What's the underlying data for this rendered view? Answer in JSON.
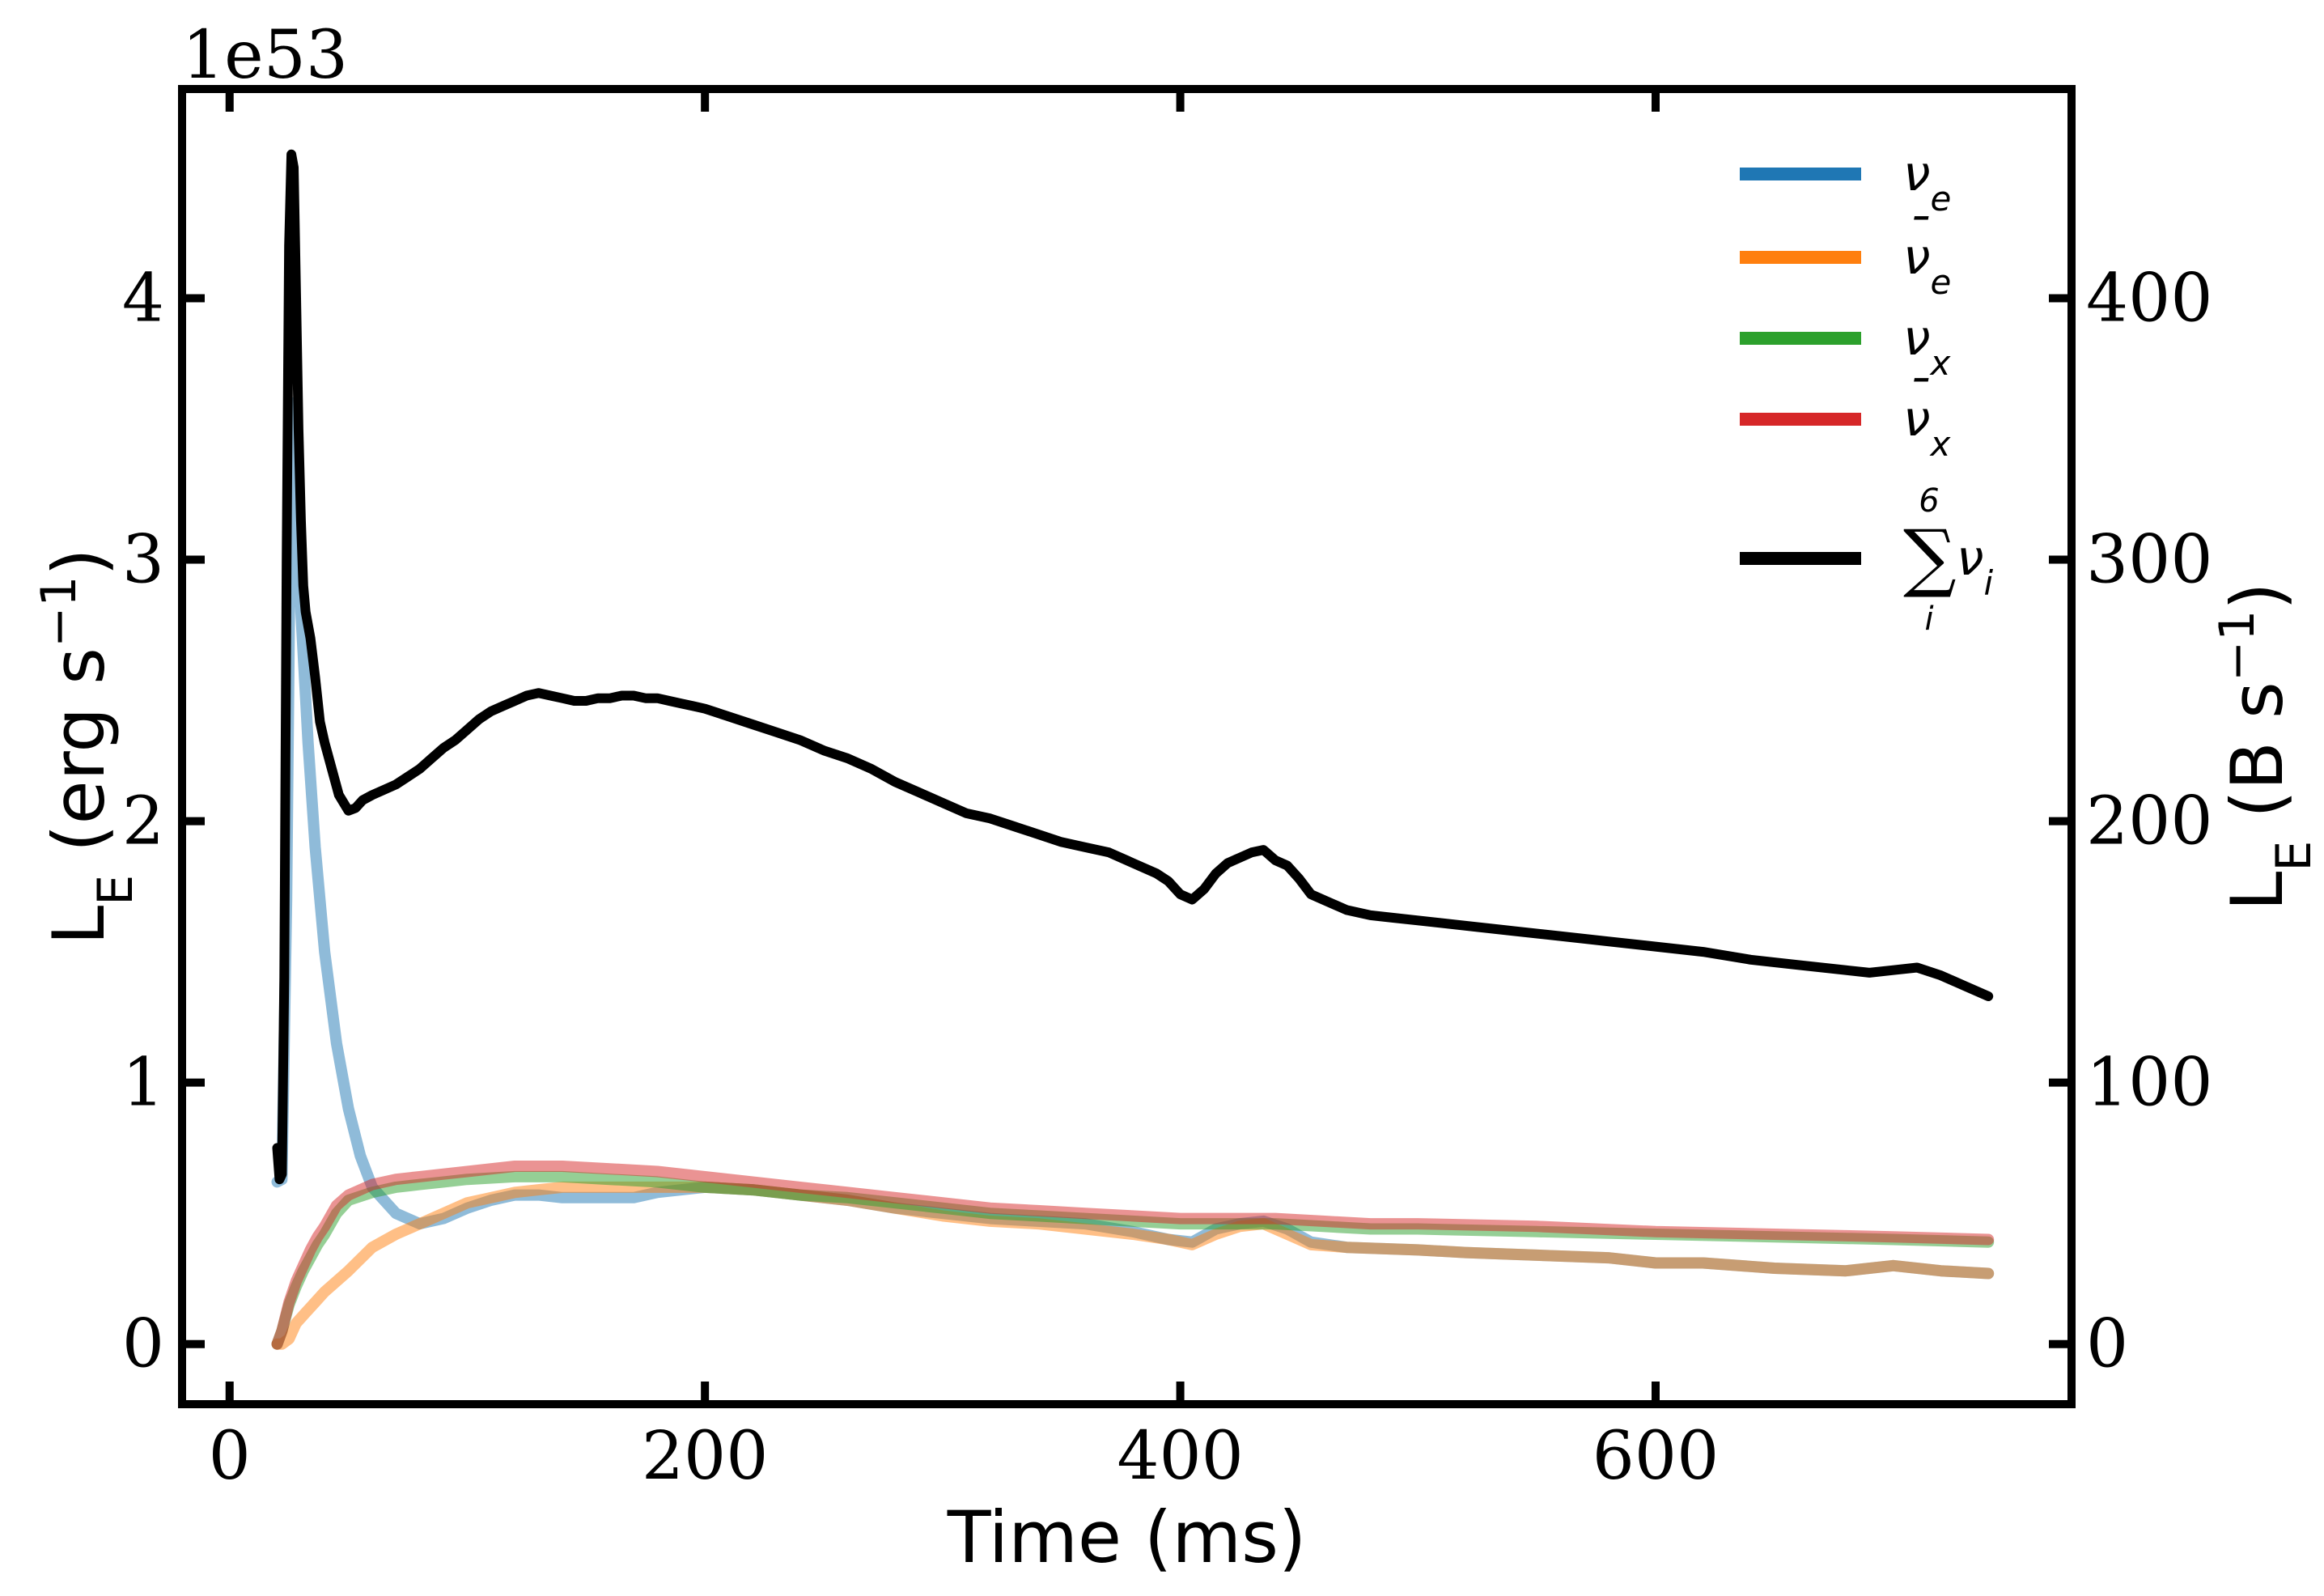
{
  "chart_data": {
    "type": "line",
    "offset_text": "1e53",
    "xlabel": "Time (ms)",
    "ylabel_left": {
      "base": "L",
      "sub": "E",
      "rest": " (erg s",
      "sup": "−1",
      "close": ")"
    },
    "ylabel_right": {
      "base": "L",
      "sub": "E",
      "rest": " (B s",
      "sup": "−1",
      "close": ")"
    },
    "xlim": [
      -20,
      775
    ],
    "ylim": [
      -0.23,
      4.8
    ],
    "ylim_right": [
      -23,
      480
    ],
    "xticks": [
      0,
      200,
      400,
      600
    ],
    "xtick_labels": [
      "0",
      "200",
      "400",
      "600"
    ],
    "yticks": [
      0,
      1,
      2,
      3,
      4
    ],
    "ytick_labels": [
      "0",
      "1",
      "2",
      "3",
      "4"
    ],
    "yticks_right": [
      0,
      100,
      200,
      300,
      400
    ],
    "ytick_right_labels": [
      "0",
      "100",
      "200",
      "300",
      "400"
    ],
    "legend_position": "upper-right",
    "legend": [
      {
        "symbol": "ν",
        "accent": "",
        "sub": "e",
        "color": "#1f77b4"
      },
      {
        "symbol": "ν",
        "accent": "¯",
        "sub": "e",
        "color": "#ff7f0e"
      },
      {
        "symbol": "ν",
        "accent": "",
        "sub": "x",
        "color": "#2ca02c"
      },
      {
        "symbol": "ν",
        "accent": "¯",
        "sub": "x",
        "color": "#d62728"
      },
      {
        "symbol": "ν",
        "accent": "",
        "sub": "i",
        "color": "#000000",
        "sum": "∑",
        "sum_upper": "6",
        "sum_lower": "i"
      }
    ],
    "series": [
      {
        "color": "#1f77b4",
        "alpha": 0.5,
        "axis": "left",
        "x": [
          20,
          22,
          24,
          26,
          28,
          30,
          33,
          36,
          40,
          45,
          50,
          55,
          60,
          70,
          80,
          90,
          100,
          110,
          120,
          130,
          140,
          150,
          160,
          170,
          180,
          200,
          220,
          240,
          260,
          280,
          300,
          320,
          340,
          360,
          380,
          395,
          405,
          415,
          425,
          435,
          445,
          455,
          470,
          500,
          520,
          550,
          580,
          600,
          620,
          650,
          680,
          700,
          720,
          740
        ],
        "y": [
          0.62,
          0.63,
          1.7,
          3.6,
          3.4,
          2.8,
          2.3,
          1.9,
          1.5,
          1.15,
          0.9,
          0.72,
          0.6,
          0.5,
          0.46,
          0.48,
          0.52,
          0.55,
          0.57,
          0.57,
          0.56,
          0.56,
          0.56,
          0.56,
          0.58,
          0.6,
          0.59,
          0.57,
          0.55,
          0.52,
          0.5,
          0.48,
          0.47,
          0.46,
          0.43,
          0.4,
          0.39,
          0.44,
          0.46,
          0.47,
          0.44,
          0.39,
          0.37,
          0.36,
          0.35,
          0.34,
          0.33,
          0.31,
          0.31,
          0.29,
          0.28,
          0.3,
          0.28,
          0.27
        ]
      },
      {
        "color": "#ff7f0e",
        "alpha": 0.5,
        "axis": "left",
        "x": [
          20,
          22,
          25,
          28,
          32,
          36,
          40,
          50,
          60,
          70,
          80,
          90,
          100,
          110,
          120,
          130,
          140,
          150,
          170,
          200,
          220,
          240,
          260,
          280,
          300,
          320,
          340,
          360,
          380,
          395,
          405,
          415,
          425,
          435,
          445,
          455,
          470,
          500,
          520,
          550,
          580,
          600,
          620,
          650,
          680,
          700,
          720,
          740
        ],
        "y": [
          0.0,
          0.0,
          0.02,
          0.08,
          0.12,
          0.16,
          0.2,
          0.28,
          0.37,
          0.42,
          0.46,
          0.5,
          0.54,
          0.56,
          0.58,
          0.59,
          0.6,
          0.6,
          0.6,
          0.6,
          0.59,
          0.57,
          0.55,
          0.52,
          0.49,
          0.47,
          0.46,
          0.44,
          0.42,
          0.4,
          0.38,
          0.42,
          0.45,
          0.46,
          0.42,
          0.38,
          0.37,
          0.36,
          0.35,
          0.34,
          0.33,
          0.31,
          0.31,
          0.29,
          0.28,
          0.3,
          0.28,
          0.27
        ]
      },
      {
        "color": "#2ca02c",
        "alpha": 0.5,
        "axis": "left",
        "x": [
          20,
          22,
          25,
          28,
          31,
          34,
          37,
          40,
          45,
          50,
          60,
          70,
          80,
          90,
          100,
          120,
          140,
          160,
          180,
          200,
          220,
          240,
          260,
          280,
          300,
          320,
          340,
          360,
          380,
          400,
          420,
          440,
          460,
          480,
          500,
          550,
          600,
          650,
          700,
          740
        ],
        "y": [
          0.0,
          0.05,
          0.15,
          0.22,
          0.28,
          0.33,
          0.38,
          0.42,
          0.5,
          0.55,
          0.58,
          0.6,
          0.61,
          0.62,
          0.63,
          0.64,
          0.64,
          0.63,
          0.62,
          0.6,
          0.59,
          0.57,
          0.56,
          0.54,
          0.52,
          0.5,
          0.49,
          0.48,
          0.47,
          0.46,
          0.46,
          0.46,
          0.45,
          0.44,
          0.44,
          0.43,
          0.42,
          0.41,
          0.4,
          0.39
        ]
      },
      {
        "color": "#d62728",
        "alpha": 0.5,
        "axis": "left",
        "x": [
          20,
          22,
          25,
          28,
          31,
          34,
          37,
          40,
          45,
          50,
          60,
          70,
          80,
          90,
          100,
          120,
          140,
          160,
          180,
          200,
          220,
          240,
          260,
          280,
          300,
          320,
          340,
          360,
          380,
          400,
          420,
          440,
          460,
          480,
          500,
          550,
          600,
          650,
          700,
          740
        ],
        "y": [
          0.0,
          0.05,
          0.16,
          0.24,
          0.3,
          0.36,
          0.41,
          0.45,
          0.53,
          0.57,
          0.61,
          0.63,
          0.64,
          0.65,
          0.66,
          0.68,
          0.68,
          0.67,
          0.66,
          0.64,
          0.62,
          0.6,
          0.58,
          0.56,
          0.54,
          0.52,
          0.51,
          0.5,
          0.49,
          0.48,
          0.48,
          0.48,
          0.47,
          0.46,
          0.46,
          0.45,
          0.43,
          0.42,
          0.41,
          0.4
        ]
      },
      {
        "color": "#000000",
        "alpha": 1.0,
        "axis": "left",
        "x": [
          20,
          21,
          22,
          23,
          24,
          25,
          26,
          27,
          28,
          29,
          30,
          31,
          32,
          34,
          36,
          38,
          40,
          43,
          46,
          50,
          53,
          56,
          60,
          65,
          70,
          75,
          80,
          85,
          90,
          95,
          100,
          105,
          110,
          115,
          120,
          125,
          130,
          135,
          140,
          145,
          150,
          155,
          160,
          165,
          170,
          175,
          180,
          185,
          190,
          195,
          200,
          210,
          220,
          230,
          240,
          250,
          260,
          270,
          280,
          290,
          300,
          310,
          320,
          330,
          340,
          350,
          360,
          370,
          380,
          390,
          395,
          400,
          405,
          410,
          415,
          420,
          425,
          430,
          435,
          440,
          445,
          450,
          455,
          460,
          470,
          480,
          490,
          500,
          520,
          540,
          560,
          580,
          600,
          620,
          640,
          660,
          680,
          690,
          700,
          710,
          720,
          730,
          740
        ],
        "y": [
          0.75,
          0.63,
          0.65,
          1.4,
          3.0,
          4.2,
          4.55,
          4.5,
          4.0,
          3.5,
          3.15,
          2.9,
          2.8,
          2.7,
          2.55,
          2.38,
          2.3,
          2.2,
          2.1,
          2.04,
          2.05,
          2.08,
          2.1,
          2.12,
          2.14,
          2.17,
          2.2,
          2.24,
          2.28,
          2.31,
          2.35,
          2.39,
          2.42,
          2.44,
          2.46,
          2.48,
          2.49,
          2.48,
          2.47,
          2.46,
          2.46,
          2.47,
          2.47,
          2.48,
          2.48,
          2.47,
          2.47,
          2.46,
          2.45,
          2.44,
          2.43,
          2.4,
          2.37,
          2.34,
          2.31,
          2.27,
          2.24,
          2.2,
          2.15,
          2.11,
          2.07,
          2.03,
          2.01,
          1.98,
          1.95,
          1.92,
          1.9,
          1.88,
          1.84,
          1.8,
          1.77,
          1.72,
          1.7,
          1.74,
          1.8,
          1.84,
          1.86,
          1.88,
          1.89,
          1.85,
          1.83,
          1.78,
          1.72,
          1.7,
          1.66,
          1.64,
          1.63,
          1.62,
          1.6,
          1.58,
          1.56,
          1.54,
          1.52,
          1.5,
          1.47,
          1.45,
          1.43,
          1.42,
          1.43,
          1.44,
          1.41,
          1.37,
          1.33
        ]
      }
    ]
  }
}
